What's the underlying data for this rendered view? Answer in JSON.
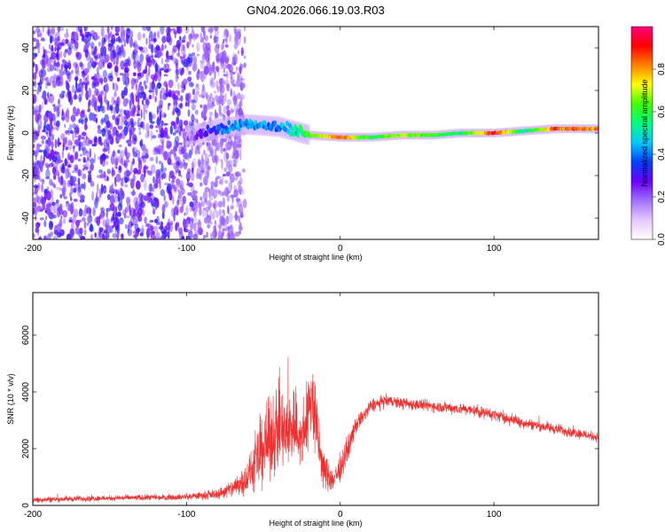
{
  "title": "GN04.2026.066.19.03.R03",
  "chart_data": [
    {
      "type": "heatmap",
      "xlabel": "Height of straight line (km)",
      "ylabel": "Frequency (Hz)",
      "xlim": [
        -200,
        168
      ],
      "ylim": [
        -50,
        50
      ],
      "xticks": [
        -200,
        -100,
        0,
        100
      ],
      "yticks": [
        -40,
        -20,
        0,
        20,
        40
      ],
      "colorbar": {
        "label": "Normalized spectral amplitude",
        "range": [
          0.0,
          1.0
        ],
        "ticks": [
          "0.0",
          "0.2",
          "0.4",
          "0.6",
          "0.8"
        ],
        "colors": [
          "#ffffff",
          "#e6c8ff",
          "#a070ff",
          "#6a00ff",
          "#0040ff",
          "#00c8ff",
          "#00ff80",
          "#40ff00",
          "#ffff00",
          "#ff8000",
          "#ff0000",
          "#ff0080"
        ]
      },
      "ridge": {
        "x": [
          -100,
          -80,
          -60,
          -40,
          -20,
          0,
          20,
          40,
          60,
          80,
          100,
          120,
          140,
          168
        ],
        "frequency": [
          -2,
          2,
          4,
          3,
          -1,
          -2,
          -2,
          -1,
          -1,
          0,
          0,
          1,
          2,
          2
        ],
        "amplitude": [
          0.15,
          0.35,
          0.45,
          0.4,
          0.6,
          0.85,
          0.55,
          0.7,
          0.6,
          0.55,
          0.9,
          0.5,
          0.85,
          0.8
        ]
      },
      "noise_region": {
        "x_range": [
          -200,
          -70
        ],
        "amplitude": 0.1
      }
    },
    {
      "type": "line",
      "xlabel": "Height of straight line (km)",
      "ylabel": "SNR (10 * v/v)",
      "xlim": [
        -200,
        168
      ],
      "ylim": [
        0,
        7500
      ],
      "xticks": [
        -200,
        -100,
        0,
        100
      ],
      "yticks": [
        0,
        2000,
        4000,
        6000
      ],
      "color": "#ee3030",
      "envelope": {
        "x": [
          -200,
          -160,
          -120,
          -100,
          -80,
          -70,
          -60,
          -55,
          -50,
          -45,
          -40,
          -35,
          -30,
          -25,
          -20,
          -18,
          -15,
          -12,
          -10,
          -8,
          -5,
          0,
          5,
          10,
          20,
          30,
          40,
          60,
          80,
          100,
          120,
          140,
          168
        ],
        "mean": [
          200,
          250,
          280,
          300,
          400,
          600,
          1000,
          1500,
          2000,
          2400,
          2800,
          2400,
          3000,
          2200,
          3500,
          3800,
          2500,
          1500,
          1200,
          1000,
          900,
          1300,
          2000,
          2800,
          3500,
          3700,
          3600,
          3500,
          3400,
          3200,
          2900,
          2700,
          2400
        ],
        "spread": [
          150,
          150,
          150,
          160,
          250,
          500,
          900,
          1500,
          1900,
          2000,
          2400,
          2000,
          2200,
          1800,
          2000,
          2500,
          1800,
          1200,
          1000,
          800,
          700,
          700,
          600,
          450,
          350,
          300,
          300,
          300,
          300,
          300,
          280,
          280,
          250
        ]
      }
    }
  ]
}
